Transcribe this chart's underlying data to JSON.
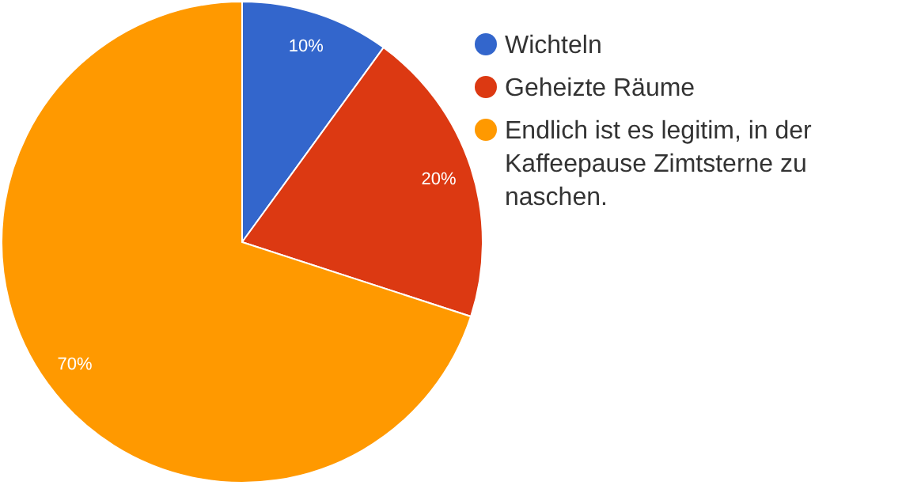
{
  "chart_data": {
    "type": "pie",
    "categories": [
      "Wichteln",
      "Geheizte Räume",
      "Endlich ist es legitim, in der Kaffeepause Zimtsterne zu naschen."
    ],
    "values": [
      10,
      20,
      70
    ],
    "colors": [
      "#3366cc",
      "#dc3912",
      "#ff9900"
    ],
    "value_labels": [
      "10%",
      "20%",
      "70%"
    ],
    "legend": "right"
  }
}
